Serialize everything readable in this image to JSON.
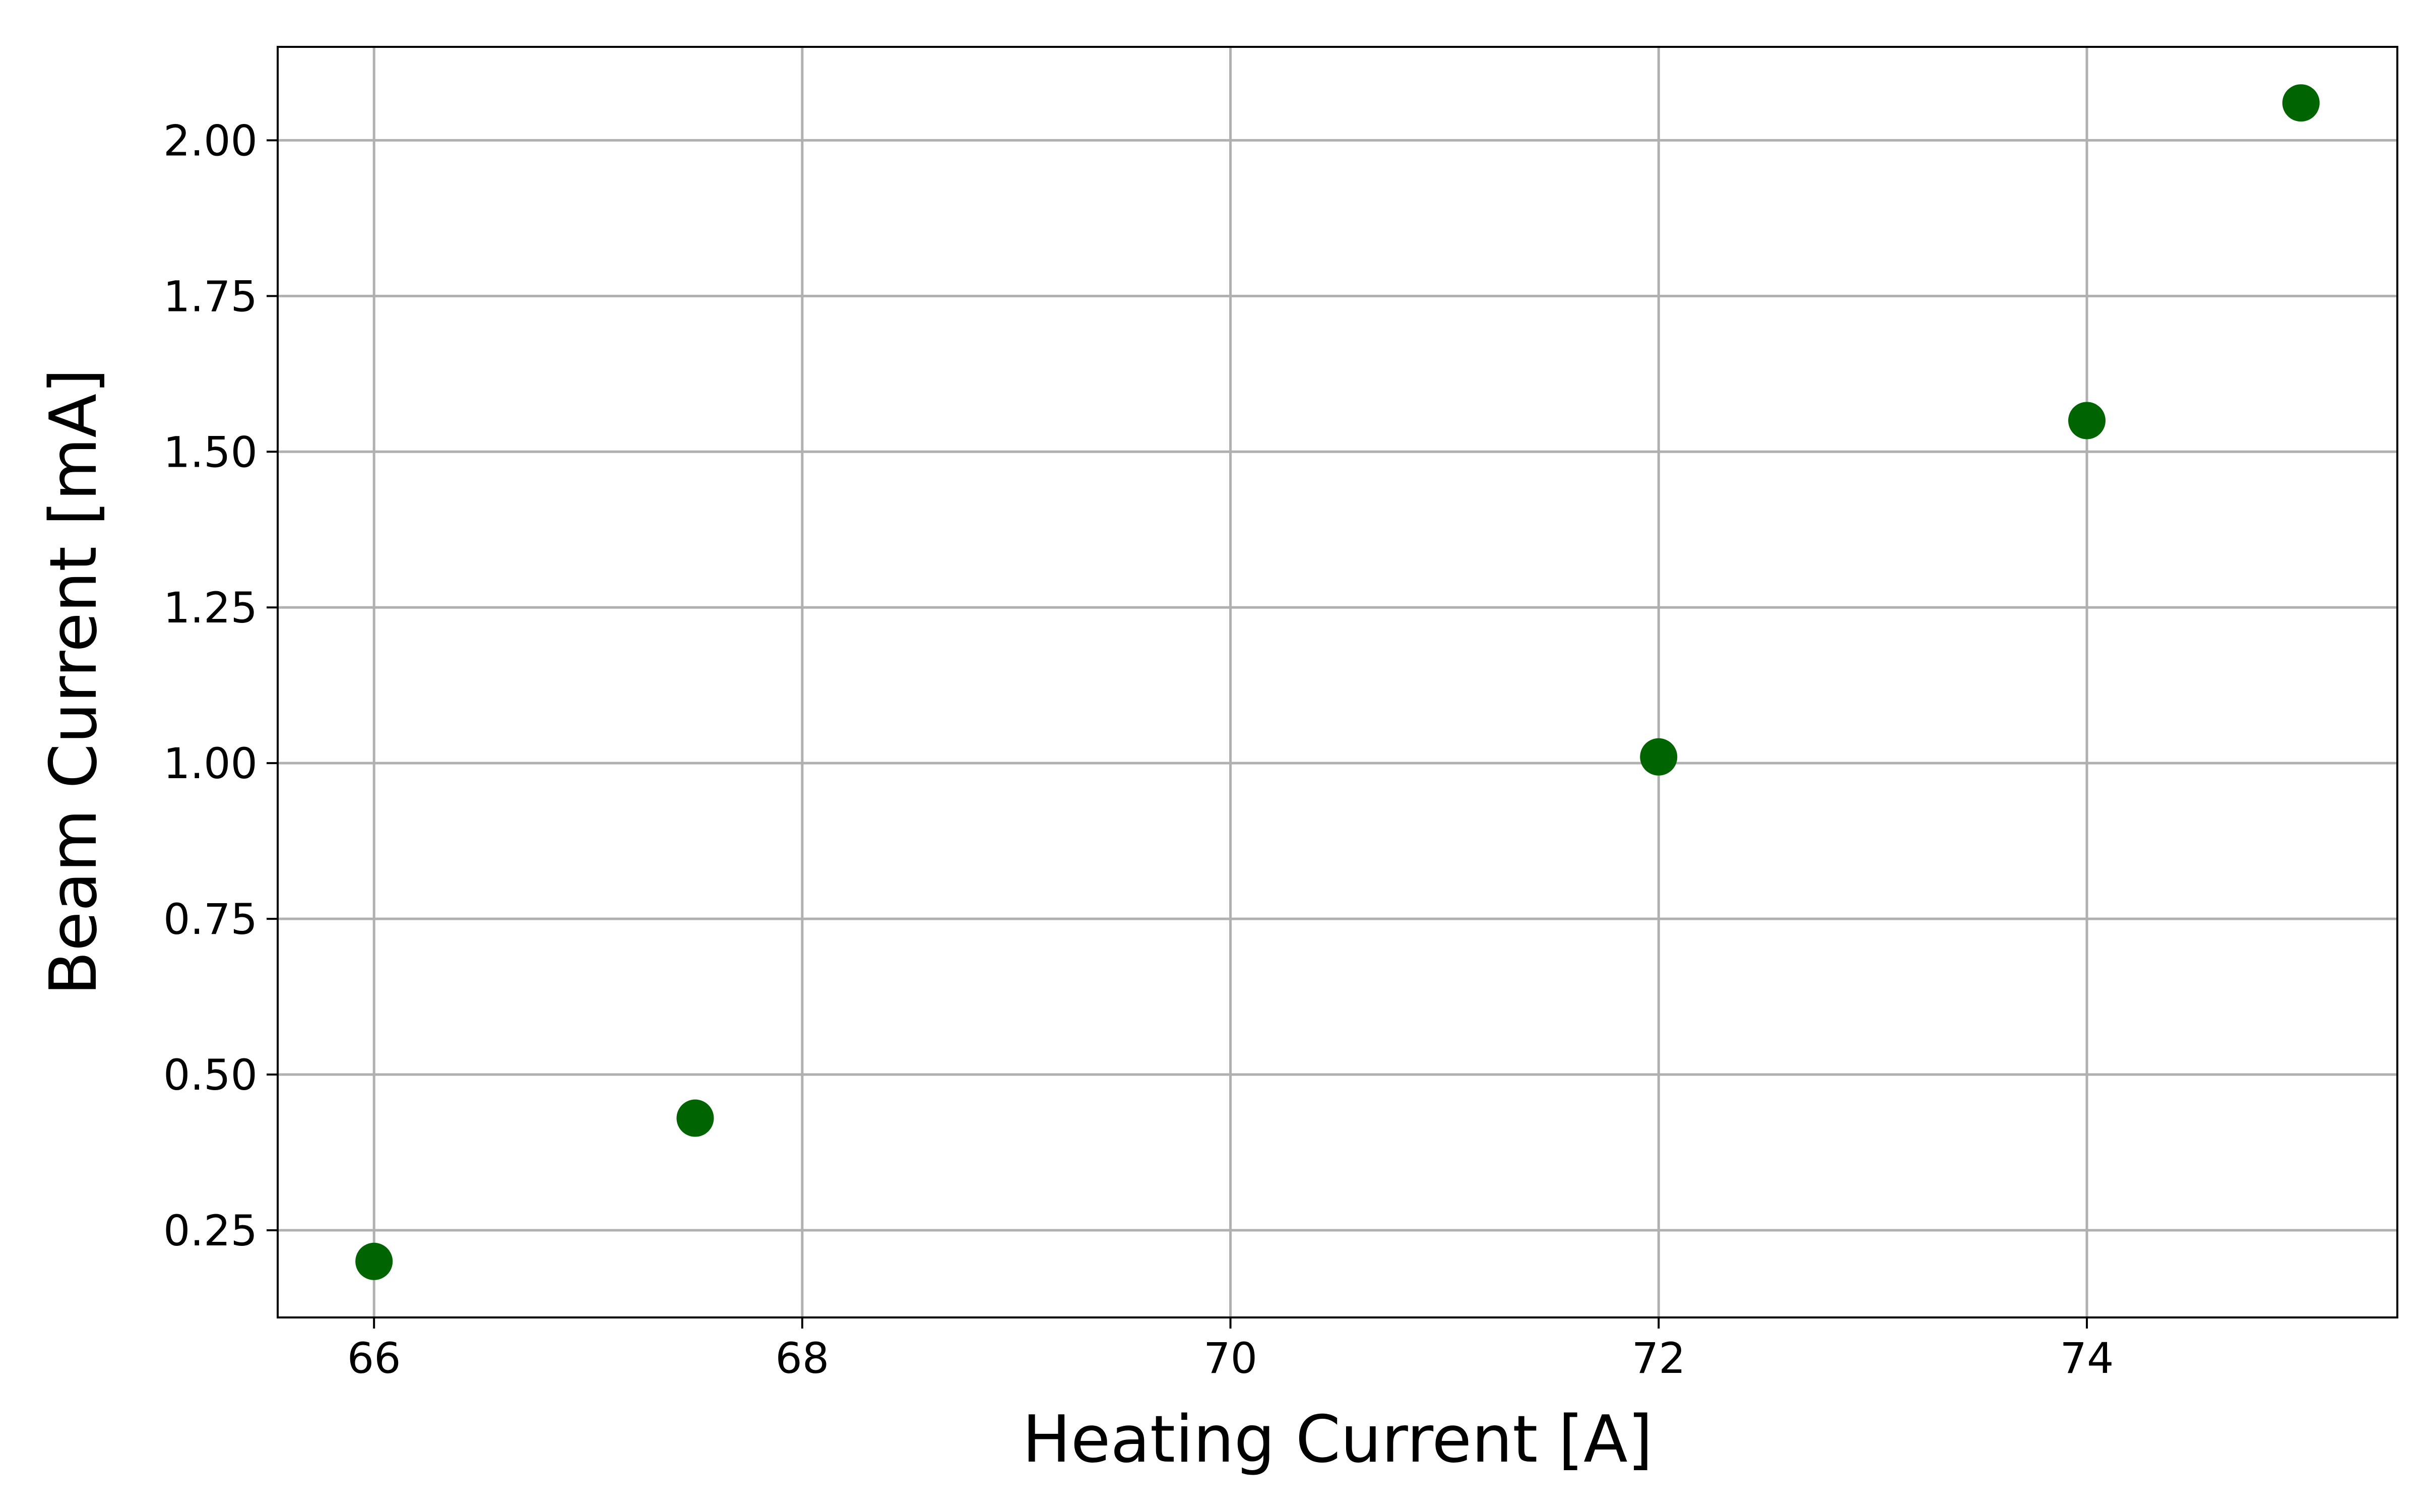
{
  "chart_data": {
    "type": "scatter",
    "x_label": "Heating Current [A]",
    "y_label": "Beam Current [mA]",
    "series": [
      {
        "color": "#006400",
        "x": [
          66,
          67.5,
          72,
          74,
          75
        ],
        "values": [
          0.2,
          0.43,
          1.01,
          1.55,
          2.06
        ]
      }
    ],
    "xlim": [
      65.55,
      75.45
    ],
    "xticks": [
      66,
      68,
      70,
      72,
      74
    ],
    "ylim": [
      0.11,
      2.15
    ],
    "yticks": [
      0.25,
      {
        "value": 0.5,
        "label": "0.50"
      },
      0.75,
      {
        "value": 1,
        "label": "1.00"
      },
      1.25,
      {
        "value": 1.5,
        "label": "1.50"
      },
      1.75,
      {
        "value": 2,
        "label": "2.00"
      }
    ],
    "grid": true
  }
}
